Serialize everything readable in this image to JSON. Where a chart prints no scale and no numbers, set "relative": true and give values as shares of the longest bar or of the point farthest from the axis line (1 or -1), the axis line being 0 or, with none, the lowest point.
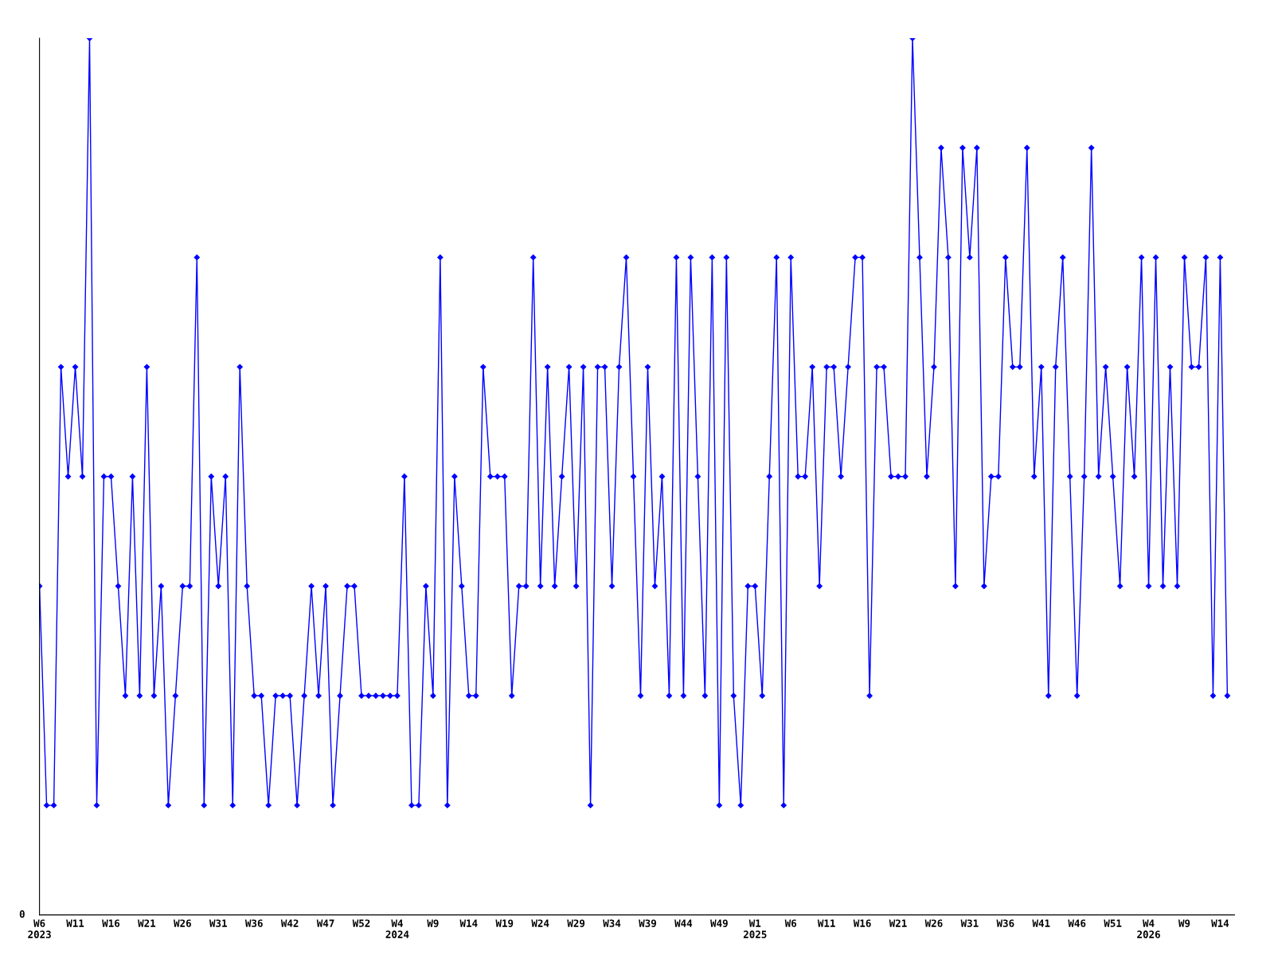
{
  "chart_data": {
    "type": "line",
    "relative": true,
    "marker": "diamond",
    "line_style": "solid",
    "grid": false,
    "legend": false,
    "annotations": [
      "0"
    ],
    "x": [
      "2023-02-06",
      "2023-02-13",
      "2023-02-20",
      "2023-02-27",
      "2023-03-06",
      "2023-03-13",
      "2023-03-20",
      "2023-03-27",
      "2023-04-03",
      "2023-04-10",
      "2023-04-17",
      "2023-04-24",
      "2023-05-01",
      "2023-05-08",
      "2023-05-15",
      "2023-05-22",
      "2023-05-29",
      "2023-06-05",
      "2023-06-12",
      "2023-06-19",
      "2023-06-26",
      "2023-07-03",
      "2023-07-10",
      "2023-07-17",
      "2023-07-24",
      "2023-07-31",
      "2023-08-07",
      "2023-08-14",
      "2023-08-21",
      "2023-08-28",
      "2023-09-04",
      "2023-09-11",
      "2023-09-18",
      "2023-09-25",
      "2023-10-02",
      "2023-10-09",
      "2023-10-16",
      "2023-10-23",
      "2023-10-30",
      "2023-11-06",
      "2023-11-13",
      "2023-11-20",
      "2023-11-27",
      "2023-12-04",
      "2023-12-11",
      "2023-12-18",
      "2023-12-25",
      "2024-01-01",
      "2024-01-08",
      "2024-01-15",
      "2024-01-22",
      "2024-01-29",
      "2024-02-05",
      "2024-02-12",
      "2024-02-19",
      "2024-02-26",
      "2024-03-04",
      "2024-03-11",
      "2024-03-18",
      "2024-03-25",
      "2024-04-01",
      "2024-04-08",
      "2024-04-15",
      "2024-04-22",
      "2024-04-29",
      "2024-05-06",
      "2024-05-13",
      "2024-05-20",
      "2024-05-27",
      "2024-06-03",
      "2024-06-10",
      "2024-06-17",
      "2024-06-24",
      "2024-07-01",
      "2024-07-08",
      "2024-07-15",
      "2024-07-22",
      "2024-07-29",
      "2024-08-05",
      "2024-08-12",
      "2024-08-19",
      "2024-08-26",
      "2024-09-02",
      "2024-09-09",
      "2024-09-16",
      "2024-09-23",
      "2024-09-30",
      "2024-10-07",
      "2024-10-14",
      "2024-10-21",
      "2024-10-28",
      "2024-11-04",
      "2024-11-11",
      "2024-11-18",
      "2024-11-25",
      "2024-12-02",
      "2024-12-09",
      "2024-12-16",
      "2024-12-23",
      "2024-12-30",
      "2025-01-06",
      "2025-01-13",
      "2025-01-20",
      "2025-01-27",
      "2025-02-03",
      "2025-02-10",
      "2025-02-17",
      "2025-02-24",
      "2025-03-03",
      "2025-03-10",
      "2025-03-17",
      "2025-03-24",
      "2025-03-31",
      "2025-04-07",
      "2025-04-14",
      "2025-04-21",
      "2025-04-28",
      "2025-05-05",
      "2025-05-12",
      "2025-05-19",
      "2025-05-26",
      "2025-06-02",
      "2025-06-09",
      "2025-06-16",
      "2025-06-23",
      "2025-06-30",
      "2025-07-07",
      "2025-07-14",
      "2025-07-21",
      "2025-07-28",
      "2025-08-04",
      "2025-08-11",
      "2025-08-18",
      "2025-08-25",
      "2025-09-01",
      "2025-09-08",
      "2025-09-15",
      "2025-09-22",
      "2025-09-29",
      "2025-10-06",
      "2025-10-13",
      "2025-10-20",
      "2025-10-27",
      "2025-11-03",
      "2025-11-10",
      "2025-11-17",
      "2025-11-24",
      "2025-12-01",
      "2025-12-08",
      "2025-12-15",
      "2025-12-22",
      "2025-12-29",
      "2026-01-05",
      "2026-01-12",
      "2026-01-19",
      "2026-01-26",
      "2026-02-02",
      "2026-02-09",
      "2026-02-16",
      "2026-02-23",
      "2026-03-02",
      "2026-03-09",
      "2026-03-16",
      "2026-03-23",
      "2026-03-30",
      "2026-04-06",
      "2026-04-13"
    ],
    "xlim": [
      "2023-02-06",
      "2026-04-20"
    ],
    "xticks": [
      {
        "value": "2023-02-06",
        "label": "W6\n2023"
      },
      {
        "value": "2023-03-13",
        "label": "W11"
      },
      {
        "value": "2023-04-17",
        "label": "W16"
      },
      {
        "value": "2023-05-22",
        "label": "W21"
      },
      {
        "value": "2023-06-26",
        "label": "W26"
      },
      {
        "value": "2023-07-31",
        "label": "W31"
      },
      {
        "value": "2023-09-04",
        "label": "W36"
      },
      {
        "value": "2023-10-09",
        "label": "W42"
      },
      {
        "value": "2023-11-13",
        "label": "W47"
      },
      {
        "value": "2023-12-18",
        "label": "W52"
      },
      {
        "value": "2024-01-22",
        "label": "W4\n2024"
      },
      {
        "value": "2024-02-26",
        "label": "W9"
      },
      {
        "value": "2024-04-01",
        "label": "W14"
      },
      {
        "value": "2024-05-06",
        "label": "W19"
      },
      {
        "value": "2024-06-10",
        "label": "W24"
      },
      {
        "value": "2024-07-15",
        "label": "W29"
      },
      {
        "value": "2024-08-19",
        "label": "W34"
      },
      {
        "value": "2024-09-23",
        "label": "W39"
      },
      {
        "value": "2024-10-28",
        "label": "W44"
      },
      {
        "value": "2024-12-02",
        "label": "W49"
      },
      {
        "value": "2025-01-06",
        "label": "W1\n2025"
      },
      {
        "value": "2025-02-10",
        "label": "W6"
      },
      {
        "value": "2025-03-17",
        "label": "W11"
      },
      {
        "value": "2025-04-21",
        "label": "W16"
      },
      {
        "value": "2025-05-26",
        "label": "W21"
      },
      {
        "value": "2025-06-30",
        "label": "W26"
      },
      {
        "value": "2025-08-04",
        "label": "W31"
      },
      {
        "value": "2025-09-08",
        "label": "W36"
      },
      {
        "value": "2025-10-13",
        "label": "W41"
      },
      {
        "value": "2025-11-17",
        "label": "W46"
      },
      {
        "value": "2025-12-22",
        "label": "W51"
      },
      {
        "value": "2026-01-26",
        "label": "W4\n2026"
      },
      {
        "value": "2026-03-02",
        "label": "W9"
      },
      {
        "value": "2026-04-06",
        "label": "W14"
      }
    ],
    "series": [
      {
        "color": "#0000ff",
        "values": [
          0.375,
          0.125,
          0.125,
          0.625,
          0.5,
          0.625,
          0.5,
          1,
          0.125,
          0.5,
          0.5,
          0.375,
          0.25,
          0.5,
          0.25,
          0.625,
          0.25,
          0.375,
          0.125,
          0.25,
          0.375,
          0.375,
          0.75,
          0.125,
          0.5,
          0.375,
          0.5,
          0.125,
          0.625,
          0.375,
          0.25,
          0.25,
          0.125,
          0.25,
          0.25,
          0.25,
          0.125,
          0.25,
          0.375,
          0.25,
          0.375,
          0.125,
          0.25,
          0.375,
          0.375,
          0.25,
          0.25,
          0.25,
          0.25,
          0.25,
          0.25,
          0.5,
          0.125,
          0.125,
          0.375,
          0.25,
          0.75,
          0.125,
          0.5,
          0.375,
          0.25,
          0.25,
          0.625,
          0.5,
          0.5,
          0.5,
          0.25,
          0.375,
          0.375,
          0.75,
          0.375,
          0.625,
          0.375,
          0.5,
          0.625,
          0.375,
          0.625,
          0.125,
          0.625,
          0.625,
          0.375,
          0.625,
          0.75,
          0.5,
          0.25,
          0.625,
          0.375,
          0.5,
          0.25,
          0.75,
          0.25,
          0.75,
          0.5,
          0.25,
          0.75,
          0.125,
          0.75,
          0.25,
          0.125,
          0.375,
          0.375,
          0.25,
          0.5,
          0.75,
          0.125,
          0.75,
          0.5,
          0.5,
          0.625,
          0.375,
          0.625,
          0.625,
          0.5,
          0.625,
          0.75,
          0.75,
          0.25,
          0.625,
          0.625,
          0.5,
          0.5,
          0.5,
          1,
          0.75,
          0.5,
          0.625,
          0.875,
          0.75,
          0.375,
          0.875,
          0.75,
          0.875,
          0.375,
          0.5,
          0.5,
          0.75,
          0.625,
          0.625,
          0.875,
          0.5,
          0.625,
          0.25,
          0.625,
          0.75,
          0.5,
          0.25,
          0.5,
          0.875,
          0.5,
          0.625,
          0.5,
          0.375,
          0.625,
          0.5,
          0.75,
          0.375,
          0.75,
          0.375,
          0.625,
          0.375,
          0.75,
          0.625,
          0.625,
          0.75,
          0.25,
          0.75,
          0.25
        ]
      }
    ]
  }
}
